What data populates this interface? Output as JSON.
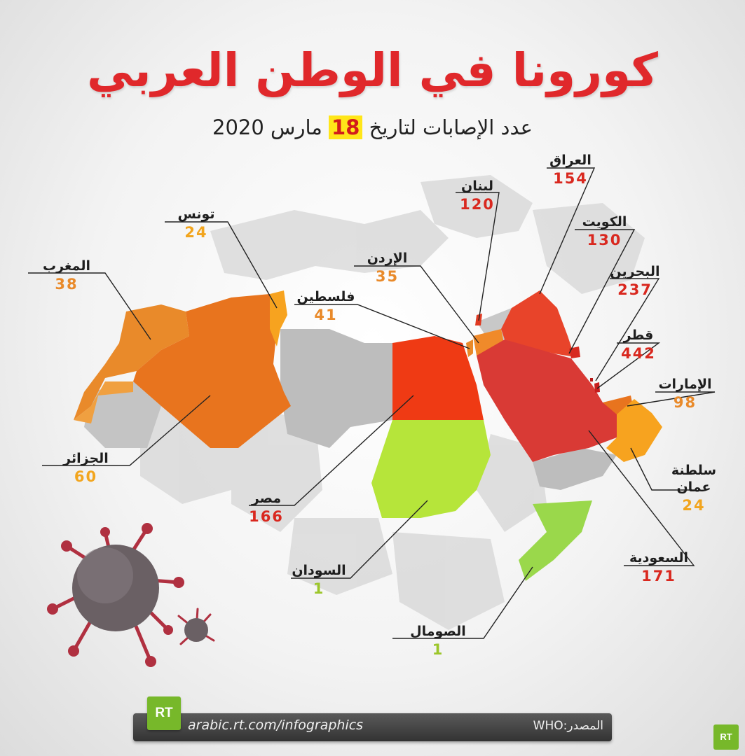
{
  "title": "كورونا في الوطن العربي",
  "subtitle": {
    "prefix": "عدد الإصابات لتاريخ",
    "day": "18",
    "suffix": "مارس 2020"
  },
  "colors": {
    "title": "#e0282b",
    "highlight": "#ffe619",
    "red": "#d9281f",
    "dark_red_fill": "#d93a35",
    "orange_fill": "#e8741e",
    "light_orange_fill": "#f7a31f",
    "green_fill": "#b6e53a",
    "light_green_fill": "#9ad84b",
    "grey_fill": "#bdbdbd"
  },
  "countries": [
    {
      "key": "morocco",
      "name": "المغرب",
      "cases": "38",
      "tone": "orange"
    },
    {
      "key": "tunisia",
      "name": "تونس",
      "cases": "24",
      "tone": "lorange"
    },
    {
      "key": "algeria",
      "name": "الجزائر",
      "cases": "60",
      "tone": "lorange"
    },
    {
      "key": "palestine",
      "name": "فلسطين",
      "cases": "41",
      "tone": "orange"
    },
    {
      "key": "jordan",
      "name": "الإردن",
      "cases": "35",
      "tone": "orange"
    },
    {
      "key": "lebanon",
      "name": "لبنان",
      "cases": "120",
      "tone": "red"
    },
    {
      "key": "iraq",
      "name": "العراق",
      "cases": "154",
      "tone": "red"
    },
    {
      "key": "kuwait",
      "name": "الكويت",
      "cases": "130",
      "tone": "red"
    },
    {
      "key": "bahrain",
      "name": "البحرين",
      "cases": "237",
      "tone": "red"
    },
    {
      "key": "qatar",
      "name": "قطر",
      "cases": "442",
      "tone": "red"
    },
    {
      "key": "uae",
      "name": "الإمارات",
      "cases": "98",
      "tone": "orange"
    },
    {
      "key": "oman",
      "name": "سلطنة عمان",
      "cases": "24",
      "tone": "lorange"
    },
    {
      "key": "saudi",
      "name": "السعودية",
      "cases": "171",
      "tone": "red"
    },
    {
      "key": "egypt",
      "name": "مصر",
      "cases": "166",
      "tone": "red"
    },
    {
      "key": "sudan",
      "name": "السودان",
      "cases": "1",
      "tone": "green"
    },
    {
      "key": "somalia",
      "name": "الصومال",
      "cases": "1",
      "tone": "green"
    }
  ],
  "footer": {
    "url": "arabic.rt.com/infographics",
    "source": "المصدر:WHO"
  },
  "logo_text": "RT",
  "icons": [
    "virus-icon",
    "rt-logo-icon"
  ]
}
